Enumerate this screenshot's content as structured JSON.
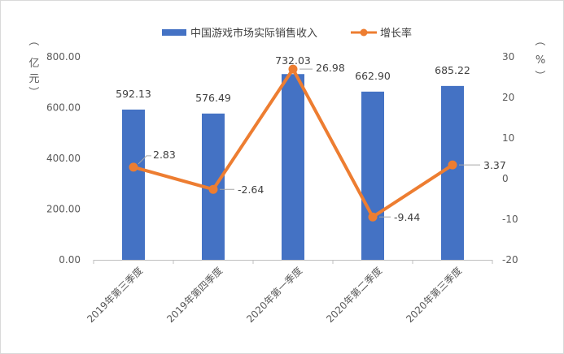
{
  "chart_data": {
    "type": "bar+line",
    "categories": [
      "2019年第三季度",
      "2019年第四季度",
      "2020年第一季度",
      "2020年第二季度",
      "2020年第三季度"
    ],
    "series": [
      {
        "name": "中国游戏市场实际销售收入",
        "type": "bar",
        "axis": "left",
        "color": "#4472C4",
        "values": [
          592.13,
          576.49,
          732.03,
          662.9,
          685.22
        ],
        "labels": [
          "592.13",
          "576.49",
          "732.03",
          "662.90",
          "685.22"
        ]
      },
      {
        "name": "增长率",
        "type": "line",
        "axis": "right",
        "color": "#ED7D31",
        "values": [
          2.83,
          -2.64,
          26.98,
          -9.44,
          3.37
        ],
        "labels": [
          "2.83",
          "-2.64",
          "26.98",
          "-9.44",
          "3.37"
        ]
      }
    ],
    "left_axis": {
      "unit_label": [
        "（",
        "亿",
        "元",
        "）"
      ],
      "min": 0,
      "max": 800,
      "ticks": [
        "0.00",
        "200.00",
        "400.00",
        "600.00",
        "800.00"
      ]
    },
    "right_axis": {
      "unit_label": [
        "（",
        "%",
        "）"
      ],
      "min": -20,
      "max": 30,
      "ticks": [
        "-20",
        "-10",
        "0",
        "10",
        "20",
        "30"
      ]
    },
    "legend_position": "top"
  }
}
